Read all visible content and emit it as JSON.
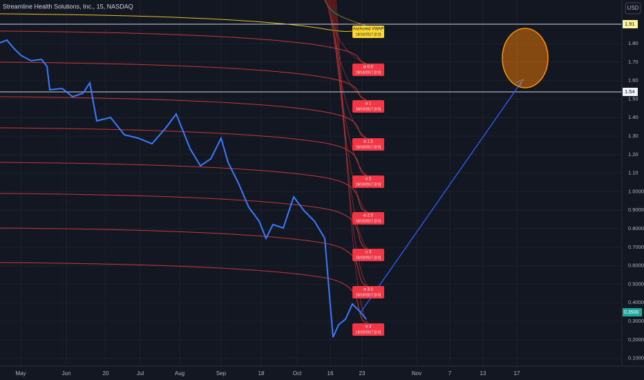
{
  "header": {
    "title": "Streamline Health Solutions, Inc., 15, NASDAQ",
    "currency": "USD"
  },
  "price_axis": {
    "ticks": [
      "1.80",
      "1.70",
      "1.60",
      "1.50",
      "1.40",
      "1.30",
      "1.20",
      "1.10",
      "1.0000",
      "0.9000",
      "0.8000",
      "0.7000",
      "0.6000",
      "0.5000",
      "0.4000",
      "0.3000",
      "0.2000",
      "0.1000"
    ],
    "levels": [
      "1.91",
      "1.54"
    ],
    "last_price": "0.3500"
  },
  "time_axis": {
    "labels": [
      "May",
      "Jun",
      "20",
      "Jul",
      "Aug",
      "Sep",
      "18",
      "Oct",
      "16",
      "23",
      "Nov",
      "7",
      "13",
      "17"
    ]
  },
  "annotations": [
    {
      "title": "Anchored VWAP",
      "date": "18/10/2017 [0:0]"
    },
    {
      "title": "σ 0.5",
      "date": "18/10/2017 [0:0]"
    },
    {
      "title": "σ 1",
      "date": "18/10/2017 [0:0]"
    },
    {
      "title": "σ 1.5",
      "date": "18/10/2017 [0:0]"
    },
    {
      "title": "σ 2",
      "date": "18/10/2017 [0:0]"
    },
    {
      "title": "σ 2.5",
      "date": "18/10/2017 [0:0]"
    },
    {
      "title": "σ 3",
      "date": "18/10/2017 [0:0]"
    },
    {
      "title": "σ 3.5",
      "date": "18/10/2017 [0:0]"
    },
    {
      "title": "σ 4",
      "date": "18/10/2017 [0:0]"
    }
  ]
}
